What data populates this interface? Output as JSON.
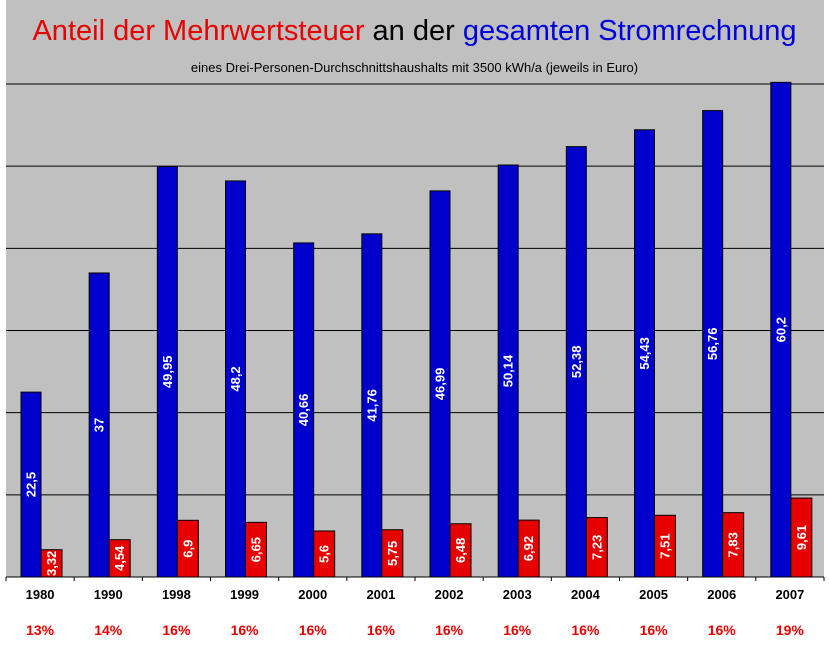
{
  "title": {
    "part1": "Anteil der Mehrwertsteuer",
    "part2": " an der ",
    "part3": "gesamten Stromrechnung",
    "color1": "#e60000",
    "color2": "#000000",
    "color3": "#0000dd"
  },
  "subtitle": "eines Drei-Personen-Durchschnittshaushalts mit 3500 kWh/a (jeweils in Euro)",
  "colors": {
    "plot_background": "#c0c0c0",
    "total_bar": "#0000cc",
    "vat_bar": "#e60000",
    "rate_text": "#e60000",
    "gridline": "#000000"
  },
  "chart_data": {
    "type": "bar",
    "categories": [
      "1980",
      "1990",
      "1998",
      "1999",
      "2000",
      "2001",
      "2002",
      "2003",
      "2004",
      "2005",
      "2006",
      "2007"
    ],
    "series": [
      {
        "values": [
          22.5,
          37,
          49.95,
          48.2,
          40.66,
          41.76,
          46.99,
          50.14,
          52.38,
          54.43,
          56.76,
          60.2
        ],
        "labels": [
          "22,5",
          "37",
          "49,95",
          "48,2",
          "40,66",
          "41,76",
          "46,99",
          "50,14",
          "52,38",
          "54,43",
          "56,76",
          "60,2"
        ]
      },
      {
        "values": [
          3.32,
          4.54,
          6.9,
          6.65,
          5.6,
          5.75,
          6.48,
          6.92,
          7.23,
          7.51,
          7.83,
          9.61
        ],
        "labels": [
          "3,32",
          "4,54",
          "6,9",
          "6,65",
          "5,6",
          "5,75",
          "6,48",
          "6,92",
          "7,23",
          "7,51",
          "7,83",
          "9,61"
        ]
      }
    ],
    "rates": [
      "13%",
      "14%",
      "16%",
      "16%",
      "16%",
      "16%",
      "16%",
      "16%",
      "16%",
      "16%",
      "16%",
      "19%"
    ],
    "ylim": [
      0,
      60
    ],
    "grid": true,
    "legend": "none"
  }
}
